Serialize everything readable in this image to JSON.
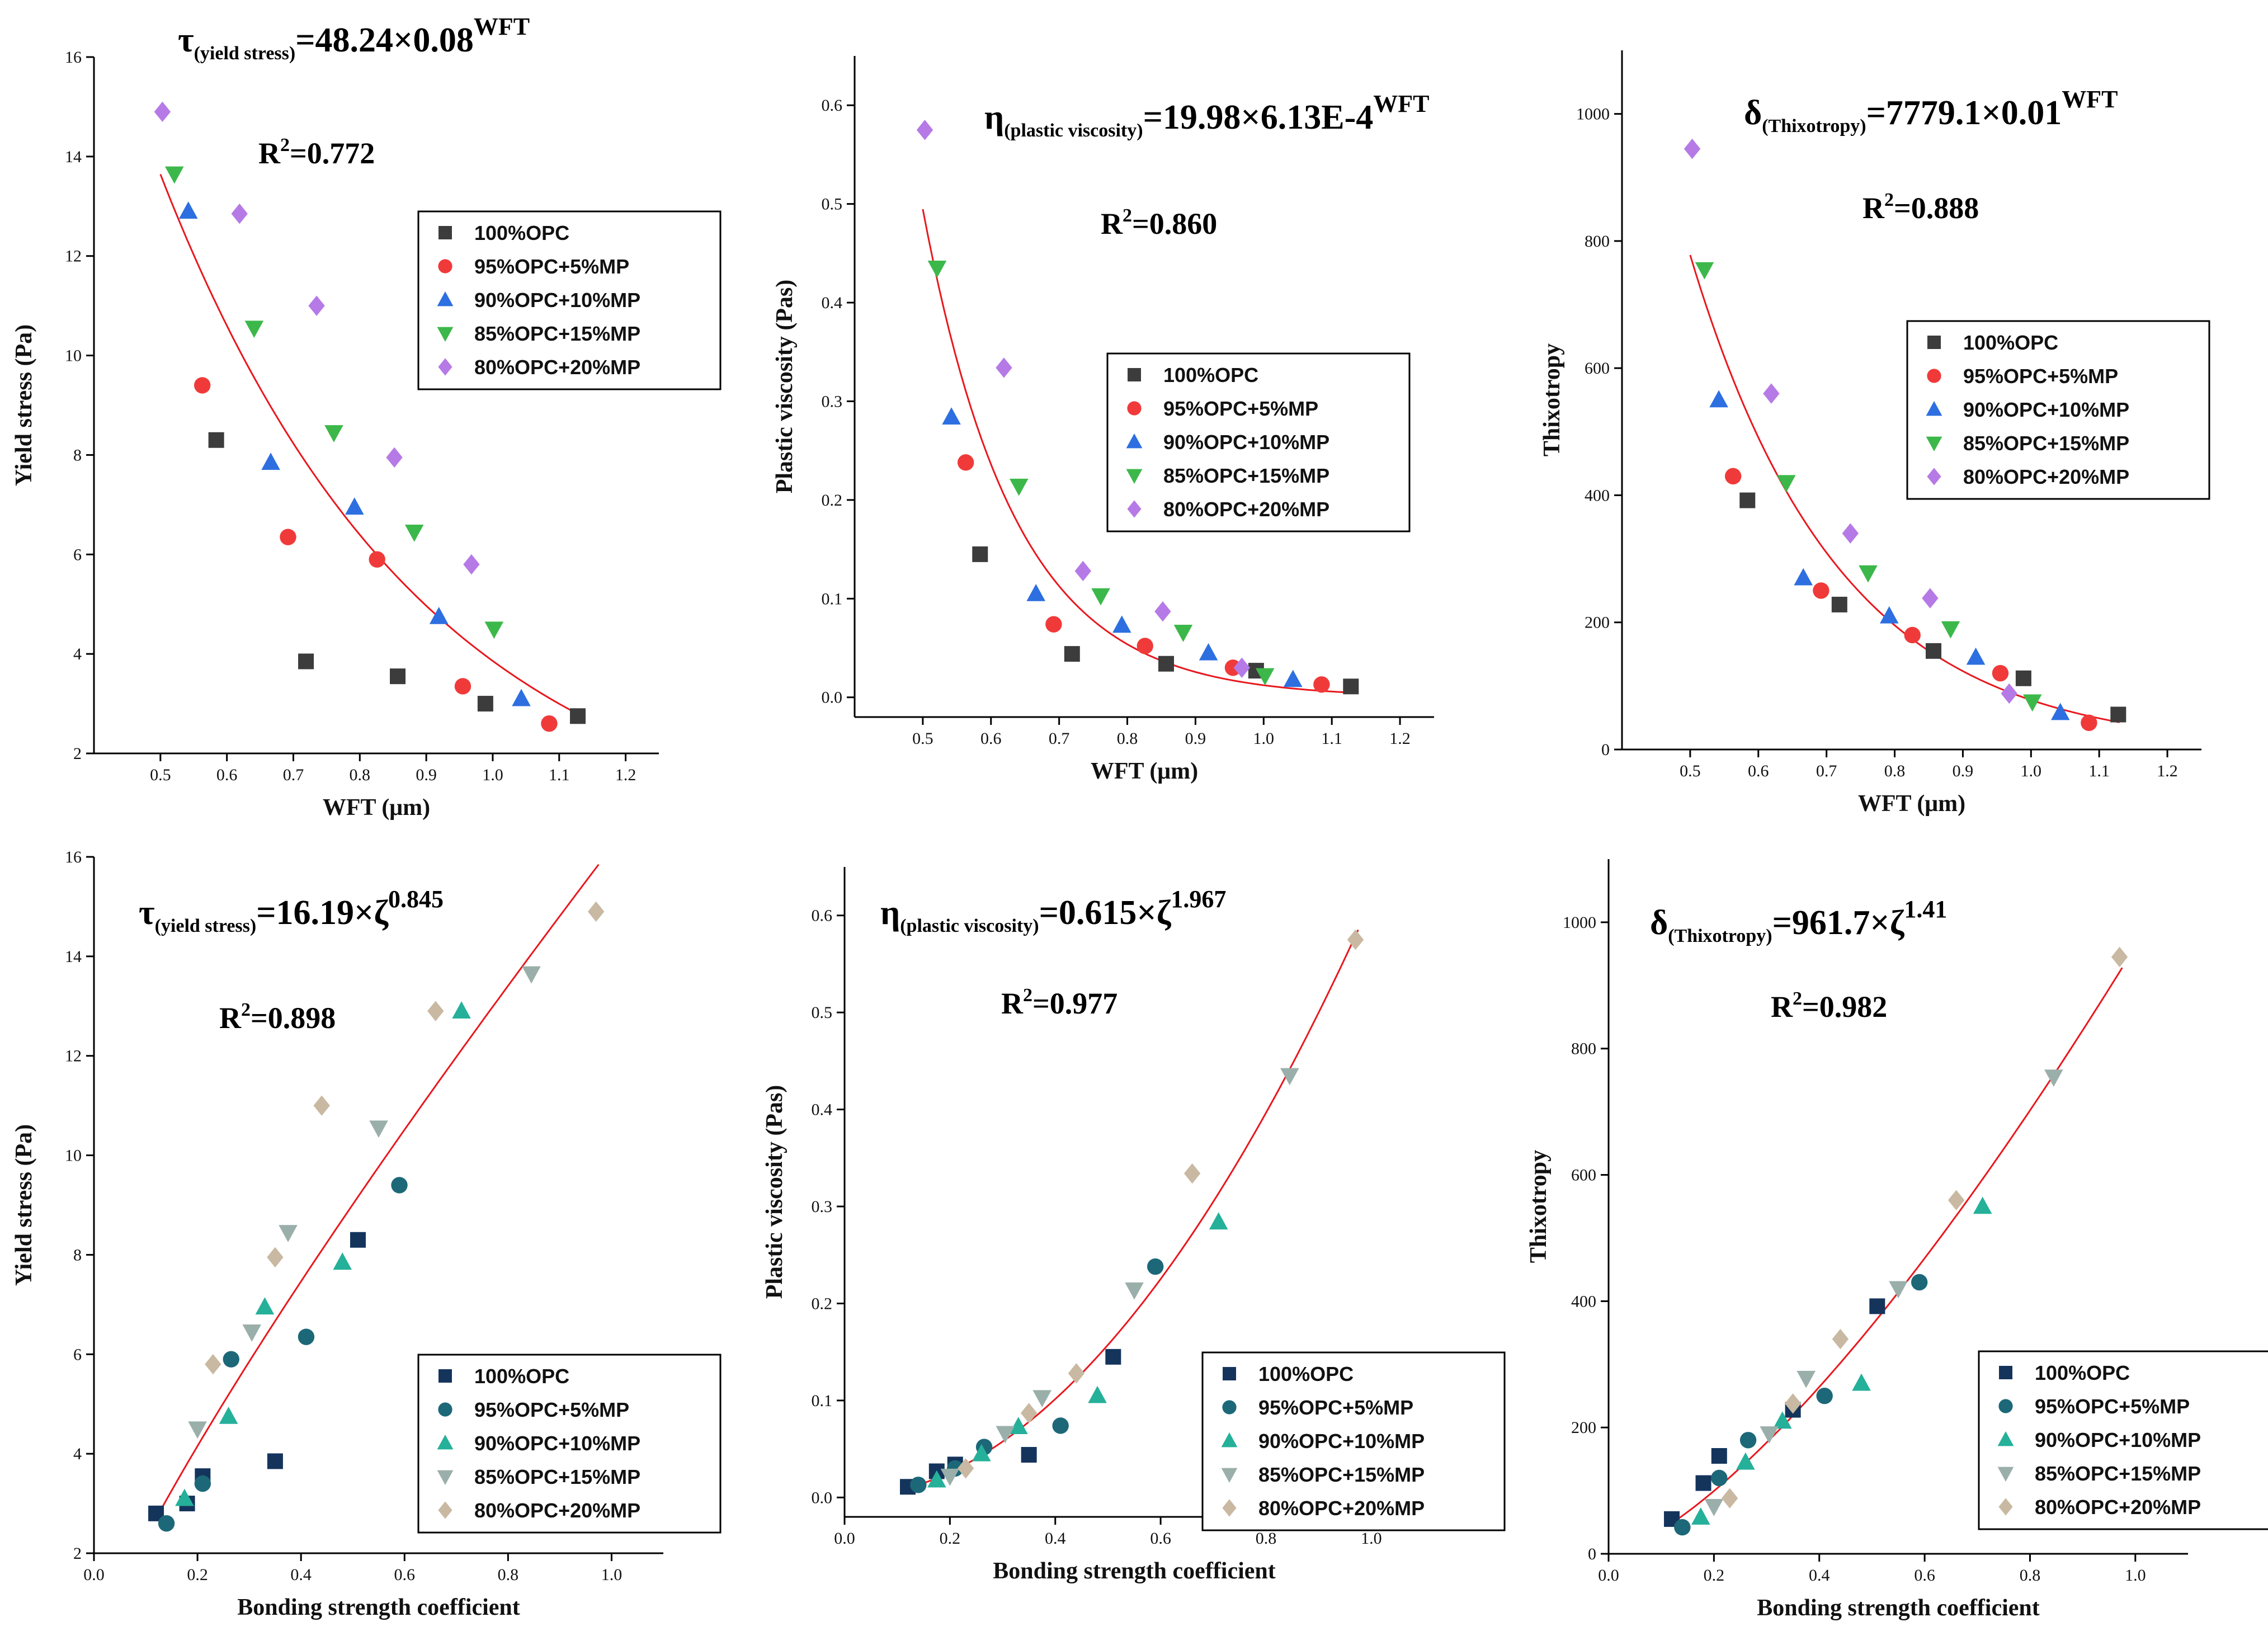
{
  "colors": {
    "fit_line": "#e8181e",
    "axis": "#000000",
    "legend_border": "#000000",
    "top_series": [
      "#3c3c3c",
      "#f03a3a",
      "#2d6fe0",
      "#3cb84a",
      "#b67ae6"
    ],
    "bottom_series": [
      "#14345c",
      "#1c6878",
      "#25b09a",
      "#9bafaa",
      "#c9b9a2"
    ]
  },
  "chart_data": [
    {
      "type": "scatter",
      "panel": "top-left",
      "xlabel": "WFT (μm)",
      "ylabel": "Yield stress (Pa)",
      "xlim": [
        0.4,
        1.25
      ],
      "ylim": [
        2,
        16
      ],
      "xticks": [
        "0.5",
        "0.6",
        "0.7",
        "0.8",
        "0.9",
        "1.0",
        "1.1",
        "1.2"
      ],
      "yticks": [
        "2",
        "4",
        "6",
        "8",
        "10",
        "12",
        "14",
        "16"
      ],
      "equation": {
        "symbol": "τ",
        "subscript": "(yield stress)",
        "body": "=48.24×0.08",
        "superscript": "WFT"
      },
      "r2": {
        "label": "R",
        "sup": "2",
        "value": "=0.772"
      },
      "legend_position": "top-right",
      "fit": {
        "kind": "exp",
        "a": 48.24,
        "b": 0.08,
        "x_range": [
          0.5,
          1.13
        ]
      },
      "series": [
        {
          "name": "100%OPC",
          "marker": "square",
          "x": [
            0.584,
            0.719,
            0.857,
            0.989,
            1.128
          ],
          "y": [
            8.3,
            3.85,
            3.55,
            3.0,
            2.75
          ]
        },
        {
          "name": "95%OPC+5%MP",
          "marker": "circle",
          "x": [
            0.563,
            0.692,
            0.826,
            0.955,
            1.085
          ],
          "y": [
            9.4,
            6.35,
            5.9,
            3.35,
            2.6
          ]
        },
        {
          "name": "90%OPC+10%MP",
          "marker": "triangle-up",
          "x": [
            0.542,
            0.666,
            0.792,
            0.919,
            1.043
          ],
          "y": [
            12.9,
            7.85,
            6.95,
            4.75,
            3.1
          ]
        },
        {
          "name": "85%OPC+15%MP",
          "marker": "triangle-down",
          "x": [
            0.521,
            0.641,
            0.761,
            0.882,
            1.002
          ],
          "y": [
            13.65,
            10.55,
            8.45,
            6.45,
            4.5
          ]
        },
        {
          "name": "80%OPC+20%MP",
          "marker": "diamond",
          "x": [
            0.503,
            0.619,
            0.735,
            0.852,
            0.968
          ],
          "y": [
            14.9,
            12.85,
            11.0,
            7.95,
            5.8
          ]
        }
      ]
    },
    {
      "type": "scatter",
      "panel": "top-middle",
      "xlabel": "WFT (μm)",
      "ylabel": "Plastic viscosity (Pas)",
      "xlim": [
        0.4,
        1.25
      ],
      "ylim": [
        -0.02,
        0.65
      ],
      "xticks": [
        "0.5",
        "0.6",
        "0.7",
        "0.8",
        "0.9",
        "1.0",
        "1.1",
        "1.2"
      ],
      "yticks": [
        "0.0",
        "0.1",
        "0.2",
        "0.3",
        "0.4",
        "0.5",
        "0.6"
      ],
      "equation": {
        "symbol": "η",
        "subscript": "(plastic viscosity)",
        "body": "=19.98×6.13E-4",
        "superscript": "WFT"
      },
      "r2": {
        "label": "R",
        "sup": "2",
        "value": "=0.860"
      },
      "legend_position": "center-right",
      "fit": {
        "kind": "exp",
        "a": 19.98,
        "b": 0.000613,
        "x_range": [
          0.5,
          1.13
        ]
      },
      "series": [
        {
          "name": "100%OPC",
          "marker": "square",
          "x": [
            0.584,
            0.719,
            0.857,
            0.989,
            1.128
          ],
          "y": [
            0.145,
            0.044,
            0.034,
            0.027,
            0.011
          ]
        },
        {
          "name": "95%OPC+5%MP",
          "marker": "circle",
          "x": [
            0.563,
            0.692,
            0.826,
            0.955,
            1.085
          ],
          "y": [
            0.238,
            0.074,
            0.052,
            0.03,
            0.013
          ]
        },
        {
          "name": "90%OPC+10%MP",
          "marker": "triangle-up",
          "x": [
            0.542,
            0.666,
            0.792,
            0.919,
            1.043
          ],
          "y": [
            0.284,
            0.105,
            0.073,
            0.045,
            0.018
          ]
        },
        {
          "name": "85%OPC+15%MP",
          "marker": "triangle-down",
          "x": [
            0.521,
            0.641,
            0.761,
            0.882,
            1.002
          ],
          "y": [
            0.435,
            0.214,
            0.103,
            0.066,
            0.022
          ]
        },
        {
          "name": "80%OPC+20%MP",
          "marker": "diamond",
          "x": [
            0.503,
            0.619,
            0.735,
            0.852,
            0.968
          ],
          "y": [
            0.575,
            0.334,
            0.128,
            0.087,
            0.03
          ]
        }
      ]
    },
    {
      "type": "scatter",
      "panel": "top-right",
      "xlabel": "WFT (μm)",
      "ylabel": "Thixotropy",
      "xlim": [
        0.4,
        1.25
      ],
      "ylim": [
        0,
        1100
      ],
      "xticks": [
        "0.5",
        "0.6",
        "0.7",
        "0.8",
        "0.9",
        "1.0",
        "1.1",
        "1.2"
      ],
      "yticks": [
        "0",
        "200",
        "400",
        "600",
        "800",
        "1000"
      ],
      "equation": {
        "symbol": "δ",
        "subscript": "(Thixotropy)",
        "body": "=7779.1×0.01",
        "superscript": "WFT"
      },
      "r2": {
        "label": "R",
        "sup": "2",
        "value": "=0.888"
      },
      "legend_position": "center-right",
      "fit": {
        "kind": "exp",
        "a": 7779.1,
        "b": 0.01,
        "x_range": [
          0.5,
          1.13
        ]
      },
      "series": [
        {
          "name": "100%OPC",
          "marker": "square",
          "x": [
            0.584,
            0.719,
            0.857,
            0.989,
            1.128
          ],
          "y": [
            392,
            228,
            155,
            112,
            55
          ]
        },
        {
          "name": "95%OPC+5%MP",
          "marker": "circle",
          "x": [
            0.563,
            0.692,
            0.826,
            0.955,
            1.085
          ],
          "y": [
            430,
            250,
            180,
            120,
            42
          ]
        },
        {
          "name": "90%OPC+10%MP",
          "marker": "triangle-up",
          "x": [
            0.542,
            0.666,
            0.792,
            0.919,
            1.043
          ],
          "y": [
            550,
            270,
            210,
            145,
            58
          ]
        },
        {
          "name": "85%OPC+15%MP",
          "marker": "triangle-down",
          "x": [
            0.521,
            0.641,
            0.761,
            0.882,
            1.002
          ],
          "y": [
            755,
            420,
            278,
            190,
            75
          ]
        },
        {
          "name": "80%OPC+20%MP",
          "marker": "diamond",
          "x": [
            0.503,
            0.619,
            0.735,
            0.852,
            0.968
          ],
          "y": [
            945,
            560,
            340,
            238,
            88
          ]
        }
      ]
    },
    {
      "type": "scatter",
      "panel": "bottom-left",
      "xlabel": "Bonding strength coefficient",
      "ylabel": "Yield stress (Pa)",
      "xlim": [
        0.0,
        1.1
      ],
      "ylim": [
        2,
        16
      ],
      "xticks": [
        "0.0",
        "0.2",
        "0.4",
        "0.6",
        "0.8",
        "1.0"
      ],
      "yticks": [
        "2",
        "4",
        "6",
        "8",
        "10",
        "12",
        "14",
        "16"
      ],
      "equation": {
        "symbol": "τ",
        "subscript": "(yield stress)",
        "body": "=16.19×ζ",
        "superscript": "0.845"
      },
      "r2": {
        "label": "R",
        "sup": "2",
        "value": "=0.898"
      },
      "legend_position": "bottom-right",
      "fit": {
        "kind": "power",
        "a": 16.19,
        "b": 0.845,
        "x_range": [
          0.13,
          0.975
        ]
      },
      "series": [
        {
          "name": "100%OPC",
          "marker": "square",
          "x": [
            0.12,
            0.18,
            0.21,
            0.35,
            0.51
          ],
          "y": [
            2.8,
            3.0,
            3.55,
            3.85,
            8.3
          ]
        },
        {
          "name": "95%OPC+5%MP",
          "marker": "circle",
          "x": [
            0.14,
            0.21,
            0.265,
            0.41,
            0.59
          ],
          "y": [
            2.6,
            3.4,
            5.9,
            6.35,
            9.4
          ]
        },
        {
          "name": "90%OPC+10%MP",
          "marker": "triangle-up",
          "x": [
            0.175,
            0.26,
            0.33,
            0.48,
            0.71
          ],
          "y": [
            3.1,
            4.75,
            6.95,
            7.85,
            12.9
          ]
        },
        {
          "name": "85%OPC+15%MP",
          "marker": "triangle-down",
          "x": [
            0.2,
            0.305,
            0.375,
            0.55,
            0.845
          ],
          "y": [
            4.5,
            6.45,
            8.45,
            10.55,
            13.65
          ]
        },
        {
          "name": "80%OPC+20%MP",
          "marker": "diamond",
          "x": [
            0.23,
            0.35,
            0.44,
            0.66,
            0.97
          ],
          "y": [
            5.8,
            7.95,
            11.0,
            12.9,
            14.9
          ]
        }
      ]
    },
    {
      "type": "scatter",
      "panel": "bottom-middle",
      "xlabel": "Bonding strength coefficient",
      "ylabel": "Plastic viscosity (Pas)",
      "xlim": [
        0.0,
        1.1
      ],
      "ylim": [
        -0.02,
        0.65
      ],
      "xticks": [
        "0.0",
        "0.2",
        "0.4",
        "0.6",
        "0.8",
        "1.0"
      ],
      "yticks": [
        "0.0",
        "0.1",
        "0.2",
        "0.3",
        "0.4",
        "0.5",
        "0.6"
      ],
      "equation": {
        "symbol": "η",
        "subscript": "(plastic viscosity)",
        "body": "=0.615×ζ",
        "superscript": "1.967"
      },
      "r2": {
        "label": "R",
        "sup": "2",
        "value": "=0.977"
      },
      "legend_position": "bottom-right",
      "fit": {
        "kind": "power",
        "a": 0.615,
        "b": 1.967,
        "x_range": [
          0.12,
          0.975
        ]
      },
      "series": [
        {
          "name": "100%OPC",
          "marker": "square",
          "x": [
            0.12,
            0.175,
            0.21,
            0.35,
            0.51
          ],
          "y": [
            0.011,
            0.027,
            0.034,
            0.044,
            0.145
          ]
        },
        {
          "name": "95%OPC+5%MP",
          "marker": "circle",
          "x": [
            0.14,
            0.21,
            0.265,
            0.41,
            0.59
          ],
          "y": [
            0.013,
            0.03,
            0.052,
            0.074,
            0.238
          ]
        },
        {
          "name": "90%OPC+10%MP",
          "marker": "triangle-up",
          "x": [
            0.175,
            0.26,
            0.33,
            0.48,
            0.71
          ],
          "y": [
            0.018,
            0.045,
            0.073,
            0.105,
            0.284
          ]
        },
        {
          "name": "85%OPC+15%MP",
          "marker": "triangle-down",
          "x": [
            0.2,
            0.305,
            0.375,
            0.55,
            0.845
          ],
          "y": [
            0.022,
            0.066,
            0.103,
            0.214,
            0.435
          ]
        },
        {
          "name": "80%OPC+20%MP",
          "marker": "diamond",
          "x": [
            0.23,
            0.35,
            0.44,
            0.66,
            0.97
          ],
          "y": [
            0.03,
            0.087,
            0.128,
            0.334,
            0.575
          ]
        }
      ]
    },
    {
      "type": "scatter",
      "panel": "bottom-right",
      "xlabel": "Bonding strength coefficient",
      "ylabel": "Thixotropy",
      "xlim": [
        0.0,
        1.1
      ],
      "ylim": [
        0,
        1100
      ],
      "xticks": [
        "0.0",
        "0.2",
        "0.4",
        "0.6",
        "0.8",
        "1.0"
      ],
      "yticks": [
        "0",
        "200",
        "400",
        "600",
        "800",
        "1000"
      ],
      "equation": {
        "symbol": "δ",
        "subscript": "(Thixotropy)",
        "body": "=961.7×ζ",
        "superscript": "1.41"
      },
      "r2": {
        "label": "R",
        "sup": "2",
        "value": "=0.982"
      },
      "legend_position": "bottom-right",
      "fit": {
        "kind": "power",
        "a": 961.7,
        "b": 1.41,
        "x_range": [
          0.12,
          0.975
        ]
      },
      "series": [
        {
          "name": "100%OPC",
          "marker": "square",
          "x": [
            0.12,
            0.18,
            0.21,
            0.35,
            0.51
          ],
          "y": [
            55,
            112,
            155,
            228,
            392
          ]
        },
        {
          "name": "95%OPC+5%MP",
          "marker": "circle",
          "x": [
            0.14,
            0.21,
            0.265,
            0.41,
            0.59
          ],
          "y": [
            42,
            120,
            180,
            250,
            430
          ]
        },
        {
          "name": "90%OPC+10%MP",
          "marker": "triangle-up",
          "x": [
            0.175,
            0.26,
            0.33,
            0.48,
            0.71
          ],
          "y": [
            58,
            145,
            210,
            270,
            550
          ]
        },
        {
          "name": "85%OPC+15%MP",
          "marker": "triangle-down",
          "x": [
            0.2,
            0.305,
            0.375,
            0.55,
            0.845
          ],
          "y": [
            75,
            190,
            278,
            420,
            755
          ]
        },
        {
          "name": "80%OPC+20%MP",
          "marker": "diamond",
          "x": [
            0.23,
            0.35,
            0.44,
            0.66,
            0.97
          ],
          "y": [
            88,
            238,
            340,
            560,
            945
          ]
        }
      ]
    }
  ]
}
